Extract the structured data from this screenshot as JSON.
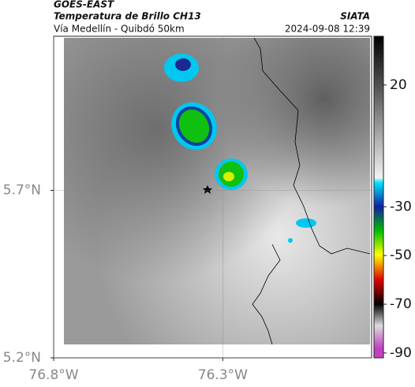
{
  "header": {
    "title": "GOES-EAST",
    "subtitle": "Temperatura de Brillo CH13",
    "region": "Vía Medellín - Quibdó 50km",
    "source": "SIATA",
    "datetime": "2024-09-08 12:39"
  },
  "map": {
    "xlim": [
      -76.8,
      -75.86
    ],
    "ylim": [
      5.2,
      6.16
    ],
    "xticks": [
      {
        "value": -76.8,
        "label": "76.8°W"
      },
      {
        "value": -76.3,
        "label": "76.3°W"
      }
    ],
    "yticks": [
      {
        "value": 5.7,
        "label": "5.7°N"
      },
      {
        "value": 5.2,
        "label": "5.2°N"
      }
    ],
    "grid": true,
    "colorbar": {
      "lim": [
        -92,
        40
      ],
      "ticks": [
        20,
        -30,
        -50,
        -70,
        -90
      ]
    }
  }
}
